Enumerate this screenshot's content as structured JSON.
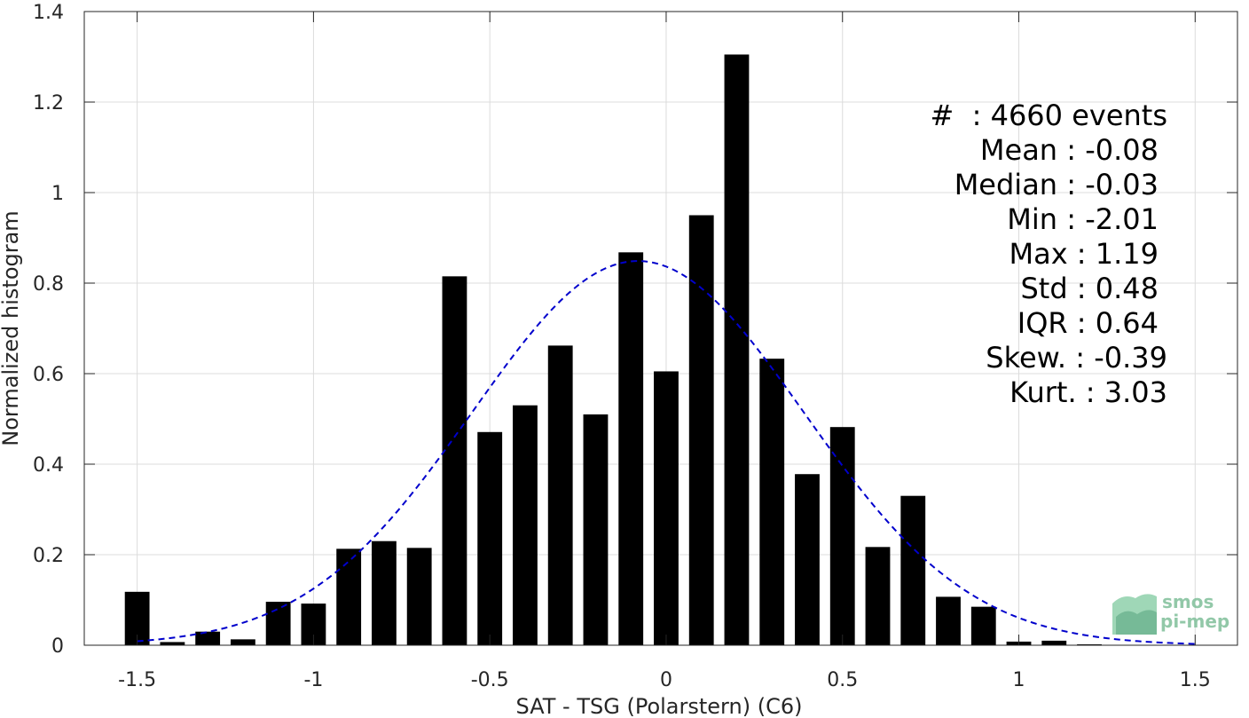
{
  "chart_data": {
    "type": "bar",
    "xlabel": "SAT - TSG (Polarstern) (C6)",
    "ylabel": "Normalized histogram",
    "xlim": [
      -1.65,
      1.62
    ],
    "ylim": [
      0,
      1.4
    ],
    "grid": true,
    "xticks": [
      -1.5,
      -1,
      -0.5,
      0,
      0.5,
      1,
      1.5
    ],
    "xtick_labels": [
      "-1.5",
      "-1",
      "-0.5",
      "0",
      "0.5",
      "1",
      "1.5"
    ],
    "yticks": [
      0,
      0.2,
      0.4,
      0.6,
      0.8,
      1,
      1.2,
      1.4
    ],
    "ytick_labels": [
      "0",
      "0.2",
      "0.4",
      "0.6",
      "0.8",
      "1",
      "1.2",
      "1.4"
    ],
    "bar_width": 0.07,
    "bins": [
      -1.5,
      -1.4,
      -1.3,
      -1.2,
      -1.1,
      -1.0,
      -0.9,
      -0.8,
      -0.7,
      -0.6,
      -0.5,
      -0.4,
      -0.3,
      -0.2,
      -0.1,
      0.0,
      0.1,
      0.2,
      0.3,
      0.4,
      0.5,
      0.6,
      0.7,
      0.8,
      0.9,
      1.0,
      1.1,
      1.2
    ],
    "values": [
      0.118,
      0.007,
      0.03,
      0.013,
      0.096,
      0.092,
      0.213,
      0.23,
      0.215,
      0.815,
      0.471,
      0.53,
      0.662,
      0.51,
      0.868,
      0.605,
      0.95,
      1.305,
      0.633,
      0.378,
      0.482,
      0.217,
      0.33,
      0.107,
      0.085,
      0.008,
      0.01,
      0.002
    ],
    "bar_color": "#000000",
    "fit_curve": {
      "style": "dashed",
      "color": "#0000cc",
      "mean": -0.08,
      "std": 0.47,
      "x_range": [
        -1.5,
        1.5
      ]
    },
    "stats_lines": [
      "#  : 4660 events",
      "Mean : -0.08",
      "Median : -0.03",
      "Min : -2.01",
      "Max : 1.19",
      "Std : 0.48",
      "IQR : 0.64",
      "Skew. : -0.39",
      "Kurt. : 3.03"
    ]
  },
  "logo": {
    "line1": "smos",
    "line2": "pi-mep",
    "color": "#7fbf9a"
  }
}
